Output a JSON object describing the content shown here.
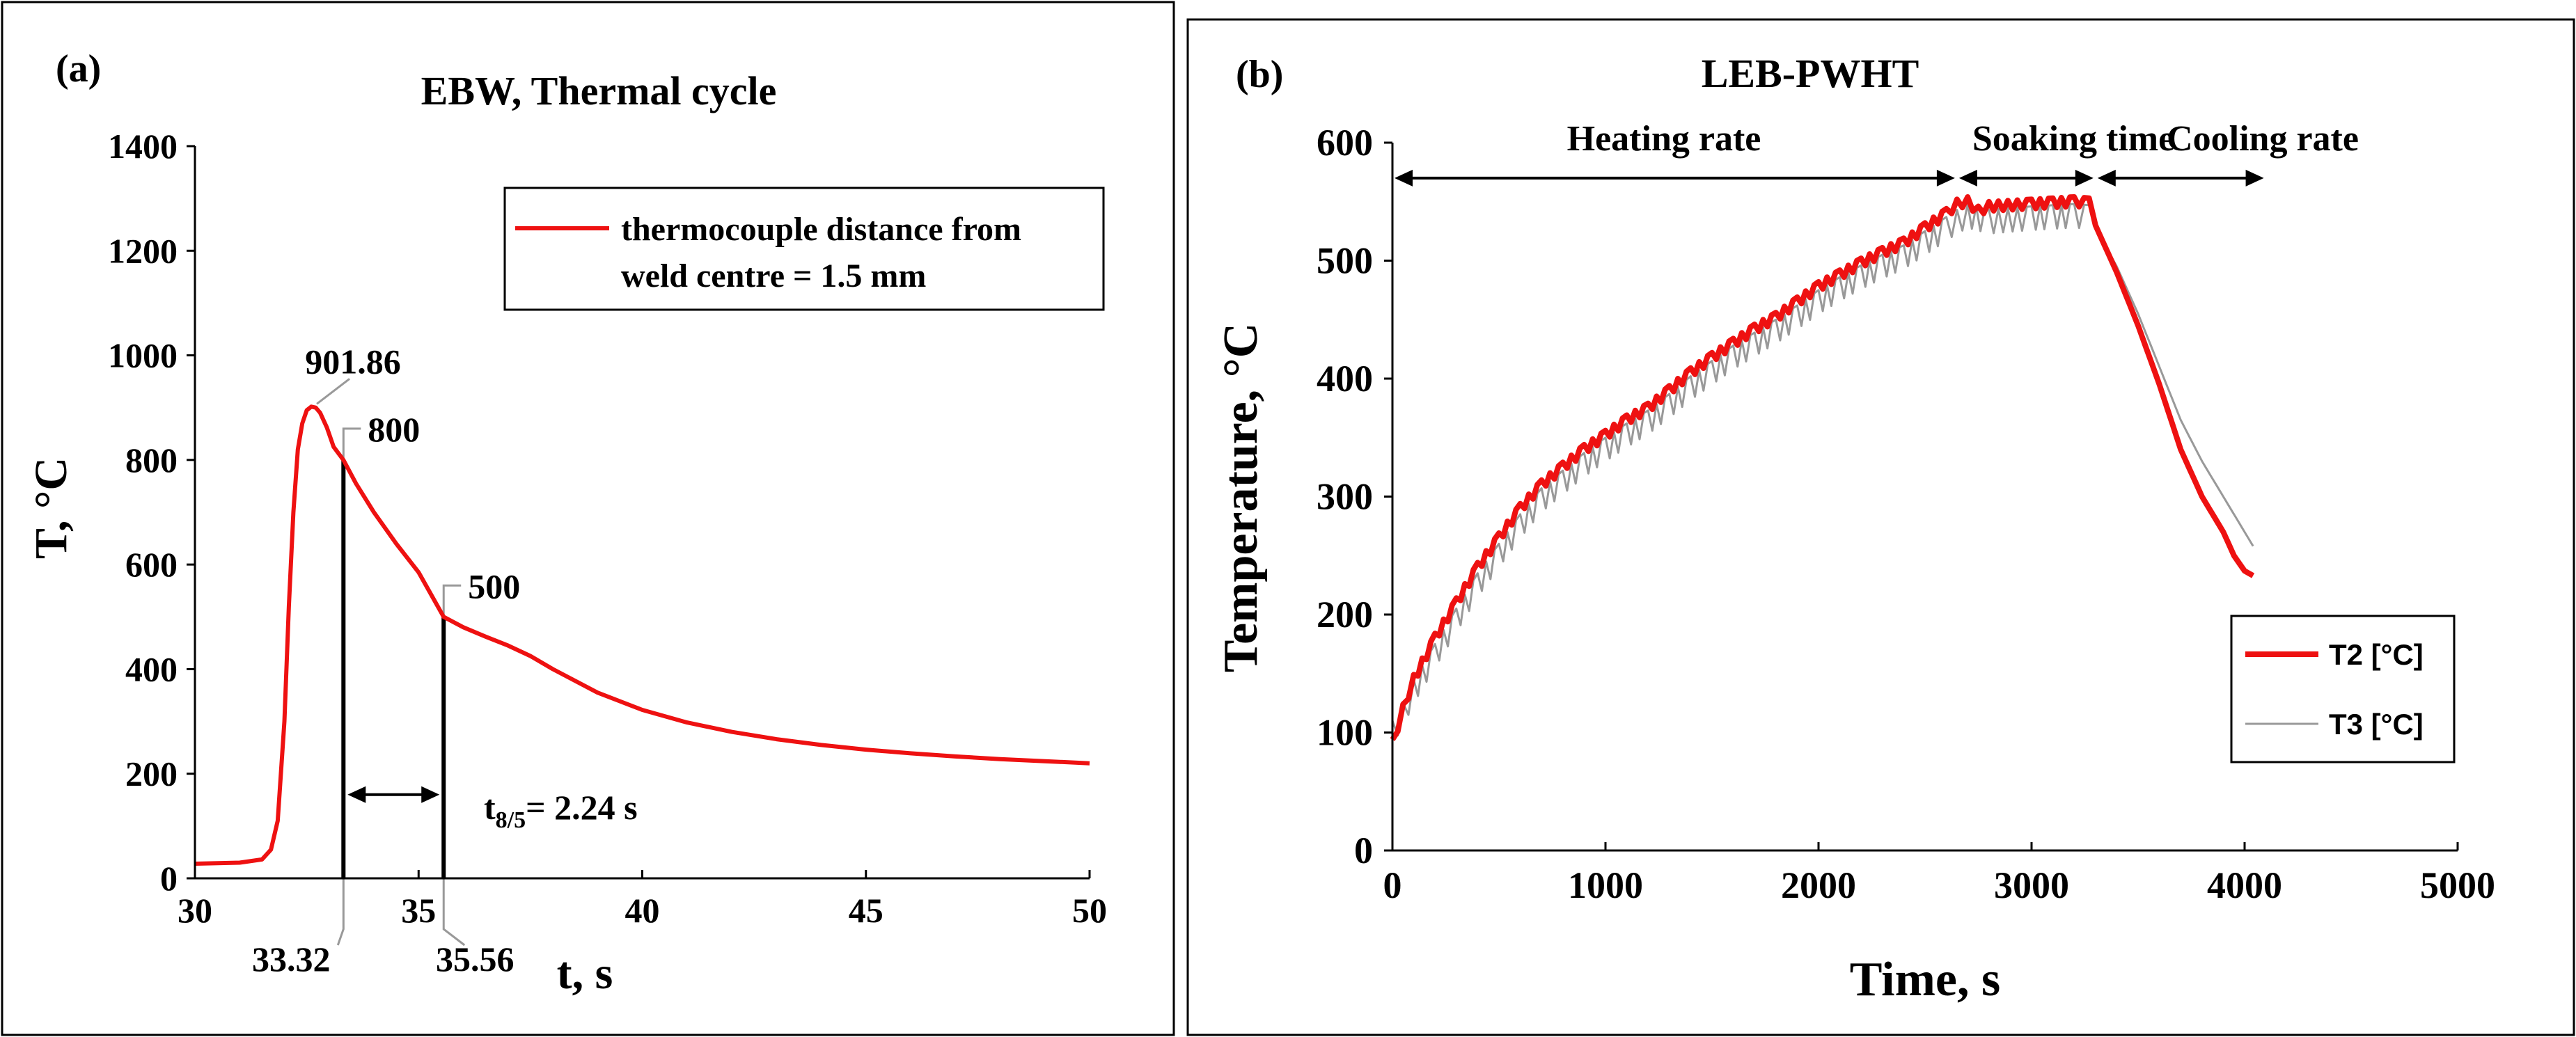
{
  "colors": {
    "t2": "#ee1111",
    "t3": "#999999",
    "frame": "#000000",
    "background": "#ffffff"
  },
  "chart_data": [
    {
      "panel_label": "(a)",
      "title": "EBW, Thermal cycle",
      "type": "line",
      "xlabel": "t, s",
      "ylabel": "T, °C",
      "xlim": [
        30,
        50
      ],
      "ylim": [
        0,
        1400
      ],
      "xticks": [
        30,
        35,
        40,
        45,
        50
      ],
      "yticks": [
        0,
        200,
        400,
        600,
        800,
        1000,
        1200,
        1400
      ],
      "grid": false,
      "legend_position": "top-right",
      "series": [
        {
          "name": "thermocouple distance from weld centre = 1.5 mm",
          "legend_lines": [
            "thermocouple distance from",
            "weld centre = 1.5 mm"
          ],
          "color": "#ee1111",
          "points": [
            [
              30,
              28
            ],
            [
              31,
              30
            ],
            [
              31.5,
              36
            ],
            [
              31.7,
              55
            ],
            [
              31.85,
              110
            ],
            [
              32,
              300
            ],
            [
              32.1,
              520
            ],
            [
              32.2,
              700
            ],
            [
              32.3,
              820
            ],
            [
              32.4,
              870
            ],
            [
              32.5,
              895
            ],
            [
              32.6,
              901.86
            ],
            [
              32.7,
              900
            ],
            [
              32.8,
              890
            ],
            [
              32.95,
              862
            ],
            [
              33.1,
              825
            ],
            [
              33.32,
              800
            ],
            [
              33.6,
              755
            ],
            [
              34,
              700
            ],
            [
              34.5,
              640
            ],
            [
              35,
              585
            ],
            [
              35.56,
              500
            ],
            [
              36,
              480
            ],
            [
              36.5,
              462
            ],
            [
              37,
              445
            ],
            [
              37.5,
              425
            ],
            [
              38,
              400
            ],
            [
              39,
              355
            ],
            [
              40,
              322
            ],
            [
              41,
              298
            ],
            [
              42,
              280
            ],
            [
              43,
              266
            ],
            [
              44,
              255
            ],
            [
              45,
              246
            ],
            [
              46,
              239
            ],
            [
              47,
              233
            ],
            [
              48,
              228
            ],
            [
              49,
              224
            ],
            [
              50,
              220
            ]
          ]
        }
      ],
      "peak_annotation": {
        "x": 32.6,
        "y": 901.86,
        "label": "901.86"
      },
      "markers": [
        {
          "x": 33.32,
          "y": 800,
          "top_label": "800",
          "bottom_label": "33.32"
        },
        {
          "x": 35.56,
          "y": 500,
          "top_label": "500",
          "bottom_label": "35.56"
        }
      ],
      "interval_annotation": {
        "y": 160,
        "label_prefix": "t",
        "label_sub": "8/5",
        "label_suffix": "= 2.24 s"
      }
    },
    {
      "panel_label": "(b)",
      "title": "LEB-PWHT",
      "type": "line",
      "xlabel": "Time, s",
      "ylabel": "Temperature, °C",
      "xlim": [
        0,
        5000
      ],
      "ylim": [
        0,
        600
      ],
      "xticks": [
        0,
        1000,
        2000,
        3000,
        4000,
        5000
      ],
      "yticks": [
        0,
        100,
        200,
        300,
        400,
        500,
        600
      ],
      "grid": false,
      "legend_position": "bottom-right",
      "series": [
        {
          "name": "T2 [°C]",
          "color": "#ee1111",
          "points": [
            [
              0,
              90
            ],
            [
              50,
              120
            ],
            [
              100,
              145
            ],
            [
              200,
              180
            ],
            [
              300,
              210
            ],
            [
              400,
              240
            ],
            [
              500,
              265
            ],
            [
              600,
              290
            ],
            [
              700,
              310
            ],
            [
              800,
              325
            ],
            [
              900,
              340
            ],
            [
              1000,
              352
            ],
            [
              1100,
              365
            ],
            [
              1200,
              375
            ],
            [
              1300,
              390
            ],
            [
              1400,
              405
            ],
            [
              1500,
              418
            ],
            [
              1600,
              430
            ],
            [
              1700,
              442
            ],
            [
              1800,
              452
            ],
            [
              1900,
              465
            ],
            [
              2000,
              478
            ],
            [
              2100,
              488
            ],
            [
              2200,
              498
            ],
            [
              2300,
              507
            ],
            [
              2400,
              515
            ],
            [
              2500,
              528
            ],
            [
              2600,
              540
            ],
            [
              2650,
              548
            ],
            [
              2700,
              550
            ],
            [
              2750,
              542
            ],
            [
              2800,
              546
            ],
            [
              3000,
              548
            ],
            [
              3100,
              549
            ],
            [
              3200,
              550
            ],
            [
              3270,
              549
            ],
            [
              3300,
              530
            ],
            [
              3400,
              490
            ],
            [
              3500,
              445
            ],
            [
              3600,
              395
            ],
            [
              3700,
              340
            ],
            [
              3800,
              300
            ],
            [
              3900,
              270
            ],
            [
              3950,
              250
            ],
            [
              4000,
              237
            ],
            [
              4040,
              233
            ]
          ]
        },
        {
          "name": "T3 [°C]",
          "color": "#999999",
          "points": [
            [
              0,
              100
            ],
            [
              50,
              115
            ],
            [
              100,
              135
            ],
            [
              200,
              165
            ],
            [
              300,
              195
            ],
            [
              400,
              225
            ],
            [
              500,
              250
            ],
            [
              600,
              275
            ],
            [
              700,
              297
            ],
            [
              800,
              312
            ],
            [
              900,
              327
            ],
            [
              1000,
              340
            ],
            [
              1100,
              352
            ],
            [
              1200,
              363
            ],
            [
              1300,
              377
            ],
            [
              1400,
              392
            ],
            [
              1500,
              405
            ],
            [
              1600,
              418
            ],
            [
              1700,
              429
            ],
            [
              1800,
              440
            ],
            [
              1900,
              452
            ],
            [
              2000,
              465
            ],
            [
              2100,
              476
            ],
            [
              2200,
              486
            ],
            [
              2300,
              495
            ],
            [
              2400,
              503
            ],
            [
              2500,
              515
            ],
            [
              2600,
              527
            ],
            [
              2650,
              533
            ],
            [
              2700,
              538
            ],
            [
              2800,
              533
            ],
            [
              3000,
              536
            ],
            [
              3100,
              537
            ],
            [
              3200,
              538
            ],
            [
              3270,
              537
            ],
            [
              3300,
              528
            ],
            [
              3400,
              495
            ],
            [
              3500,
              455
            ],
            [
              3600,
              410
            ],
            [
              3700,
              365
            ],
            [
              3800,
              330
            ],
            [
              3900,
              300
            ],
            [
              4000,
              270
            ],
            [
              4040,
              258
            ]
          ]
        }
      ],
      "region_annotations": [
        {
          "label": "Heating rate",
          "x_start": 0,
          "x_end": 2650
        },
        {
          "label": "Soaking time",
          "x_start": 2650,
          "x_end": 3300
        },
        {
          "label": "Cooling rate",
          "x_start": 3300,
          "x_end": 4100
        }
      ]
    }
  ]
}
